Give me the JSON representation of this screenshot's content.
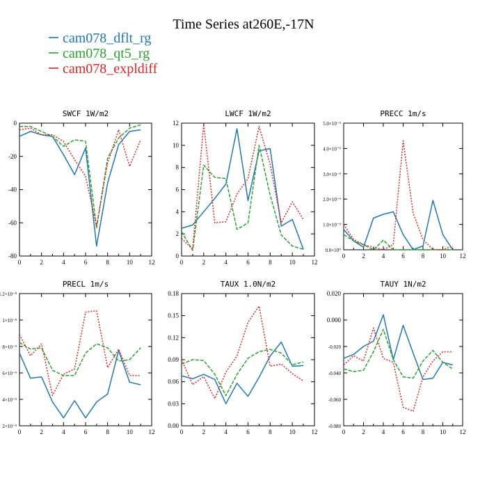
{
  "title": "Time Series at260E,-17N",
  "legend": [
    {
      "name": "cam078_dflt_rg",
      "color": "#1f77b4"
    },
    {
      "name": "cam078_qt5_rg",
      "color": "#2ca02c"
    },
    {
      "name": "cam078_expldiff",
      "color": "#d62728"
    }
  ],
  "colors": {
    "dflt": "#1f77b4",
    "qt5": "#2ca02c",
    "expl": "#d62728",
    "axis": "#000000"
  },
  "chart_data": [
    {
      "type": "line",
      "title": "SWCF   1W/m2",
      "x": [
        0,
        1,
        2,
        3,
        4,
        5,
        6,
        7,
        8,
        9,
        10,
        11
      ],
      "xlim": [
        0,
        12
      ],
      "xticks": [
        "0",
        "2",
        "4",
        "6",
        "8",
        "10",
        "12"
      ],
      "ylim": [
        -80,
        0
      ],
      "yticks": [
        {
          "v": 0,
          "label": "0"
        },
        {
          "v": -20,
          "label": "-20"
        },
        {
          "v": -40,
          "label": "-40"
        },
        {
          "v": -60,
          "label": "-60"
        },
        {
          "v": -80,
          "label": "-80"
        }
      ],
      "series": [
        {
          "name": "cam078_dflt_rg",
          "values": [
            -8,
            -5,
            -7,
            -8,
            -19,
            -31,
            -15,
            -74,
            -36,
            -13,
            -5,
            -4
          ]
        },
        {
          "name": "cam078_qt5_rg",
          "values": [
            -2,
            -2,
            -5,
            -8,
            -14,
            -10,
            -11,
            -63,
            -21,
            -9,
            -3,
            -1
          ]
        },
        {
          "name": "cam078_expldiff",
          "values": [
            -4,
            -3,
            -7,
            -7,
            -11,
            -22,
            -32,
            -62,
            -24,
            -4,
            -26,
            -10
          ]
        }
      ]
    },
    {
      "type": "line",
      "title": "LWCF   1W/m2",
      "x": [
        0,
        1,
        2,
        3,
        4,
        5,
        6,
        7,
        8,
        9,
        10,
        11
      ],
      "xlim": [
        0,
        12
      ],
      "xticks": [
        "0",
        "2",
        "4",
        "6",
        "8",
        "10",
        "12"
      ],
      "ylim": [
        0,
        12
      ],
      "yticks": [
        {
          "v": 0,
          "label": "0"
        },
        {
          "v": 2,
          "label": "2"
        },
        {
          "v": 4,
          "label": "4"
        },
        {
          "v": 6,
          "label": "6"
        },
        {
          "v": 8,
          "label": "8"
        },
        {
          "v": 10,
          "label": "10"
        },
        {
          "v": 12,
          "label": "12"
        }
      ],
      "series": [
        {
          "name": "cam078_dflt_rg",
          "values": [
            2.5,
            2.8,
            4.0,
            5.2,
            6.5,
            11.5,
            5.0,
            9.5,
            9.7,
            2.7,
            3.3,
            0.6
          ]
        },
        {
          "name": "cam078_qt5_rg",
          "values": [
            2.2,
            0.5,
            8.2,
            7.1,
            7.0,
            2.4,
            3.0,
            10.0,
            5.5,
            1.9,
            0.9,
            0.6
          ]
        },
        {
          "name": "cam078_expldiff",
          "values": [
            1.6,
            0.6,
            11.9,
            3.0,
            3.1,
            5.6,
            7.0,
            11.7,
            8.3,
            3.0,
            4.9,
            3.3
          ]
        }
      ]
    },
    {
      "type": "line",
      "title": "PRECC   1m/s",
      "x": [
        0,
        1,
        2,
        3,
        4,
        5,
        6,
        7,
        8,
        9,
        10,
        11
      ],
      "xlim": [
        0,
        12
      ],
      "xticks": [
        "0",
        "2",
        "4",
        "6",
        "8",
        "10",
        "12"
      ],
      "ylim": [
        0,
        5e-09
      ],
      "yticks": [
        {
          "v": 0,
          "label": "0.0×10⁰"
        },
        {
          "v": 1e-09,
          "label": "1.0×10⁻⁹"
        },
        {
          "v": 2e-09,
          "label": "2.0×10⁻⁹"
        },
        {
          "v": 3e-09,
          "label": "3.0×10⁻⁹"
        },
        {
          "v": 4e-09,
          "label": "4.0×10⁻⁹"
        },
        {
          "v": 5e-09,
          "label": "5.0×10⁻⁹"
        }
      ],
      "series": [
        {
          "name": "cam078_dflt_rg",
          "values": [
            8e-10,
            3.5e-10,
            1e-10,
            1.25e-09,
            1.4e-09,
            1.5e-09,
            6e-10,
            0,
            1.5e-10,
            1.95e-09,
            6e-10,
            0
          ]
        },
        {
          "name": "cam078_qt5_rg",
          "values": [
            6e-10,
            3.5e-10,
            2e-10,
            0,
            3.8e-10,
            0,
            0,
            0,
            0,
            0,
            0,
            0
          ]
        },
        {
          "name": "cam078_expldiff",
          "values": [
            1e-09,
            4e-10,
            2e-10,
            1e-10,
            0,
            2e-10,
            4.3e-09,
            1.45e-09,
            4e-10,
            1e-11,
            0,
            1.5e-10
          ]
        }
      ]
    },
    {
      "type": "line",
      "title": "PRECL   1m/s",
      "x": [
        0,
        1,
        2,
        3,
        4,
        5,
        6,
        7,
        8,
        9,
        10,
        11
      ],
      "xlim": [
        0,
        12
      ],
      "xticks": [
        "0",
        "2",
        "4",
        "6",
        "8",
        "10",
        "12"
      ],
      "ylim": [
        2e-09,
        1.2e-08
      ],
      "yticks": [
        {
          "v": 2e-09,
          "label": "2×10⁻⁹"
        },
        {
          "v": 4e-09,
          "label": "4×10⁻⁹"
        },
        {
          "v": 6e-09,
          "label": "6×10⁻⁹"
        },
        {
          "v": 8e-09,
          "label": "8×10⁻⁹"
        },
        {
          "v": 1e-08,
          "label": "1×10⁻⁸"
        },
        {
          "v": 1.2e-08,
          "label": "1.2×10⁻⁸"
        }
      ],
      "series": [
        {
          "name": "cam078_dflt_rg",
          "values": [
            7.5e-09,
            5.6e-09,
            5.7e-09,
            3.8e-09,
            2.6e-09,
            3.9e-09,
            2.6e-09,
            3.8e-09,
            4.4e-09,
            7.7e-09,
            5.3e-09,
            5.1e-09
          ]
        },
        {
          "name": "cam078_qt5_rg",
          "values": [
            8.3e-09,
            7.8e-09,
            7.9e-09,
            6.2e-09,
            5.8e-09,
            5.8e-09,
            7.5e-09,
            8.2e-09,
            7.9e-09,
            6.9e-09,
            7e-09,
            7.9e-09
          ]
        },
        {
          "name": "cam078_expldiff",
          "values": [
            8.9e-09,
            7.3e-09,
            8.2e-09,
            4.3e-09,
            5.9e-09,
            6.3e-09,
            1.06e-08,
            1.07e-08,
            6.4e-09,
            7.8e-09,
            5.8e-09,
            5.8e-09
          ]
        }
      ]
    },
    {
      "type": "line",
      "title": "TAUX   1.0N/m2",
      "x": [
        0,
        1,
        2,
        3,
        4,
        5,
        6,
        7,
        8,
        9,
        10,
        11
      ],
      "xlim": [
        0,
        12
      ],
      "xticks": [
        "0",
        "2",
        "4",
        "6",
        "8",
        "10",
        "12"
      ],
      "ylim": [
        0,
        0.18
      ],
      "yticks": [
        {
          "v": 0,
          "label": "0.00"
        },
        {
          "v": 0.03,
          "label": "0.03"
        },
        {
          "v": 0.06,
          "label": "0.06"
        },
        {
          "v": 0.09,
          "label": "0.09"
        },
        {
          "v": 0.12,
          "label": "0.12"
        },
        {
          "v": 0.15,
          "label": "0.15"
        },
        {
          "v": 0.18,
          "label": "0.18"
        }
      ],
      "series": [
        {
          "name": "cam078_dflt_rg",
          "values": [
            0.068,
            0.064,
            0.07,
            0.063,
            0.03,
            0.058,
            0.04,
            0.066,
            0.095,
            0.114,
            0.081,
            0.082
          ]
        },
        {
          "name": "cam078_qt5_rg",
          "values": [
            0.084,
            0.09,
            0.089,
            0.07,
            0.041,
            0.07,
            0.092,
            0.101,
            0.104,
            0.099,
            0.083,
            0.087
          ]
        },
        {
          "name": "cam078_expldiff",
          "values": [
            0.09,
            0.056,
            0.067,
            0.037,
            0.073,
            0.095,
            0.141,
            0.163,
            0.081,
            0.084,
            0.071,
            0.061
          ]
        }
      ]
    },
    {
      "type": "line",
      "title": "TAUY   1N/m2",
      "x": [
        0,
        1,
        2,
        3,
        4,
        5,
        6,
        7,
        8,
        9,
        10,
        11
      ],
      "xlim": [
        0,
        12
      ],
      "xticks": [
        "0",
        "2",
        "4",
        "6",
        "8",
        "10",
        "12"
      ],
      "ylim": [
        -0.08,
        0.02
      ],
      "yticks": [
        {
          "v": -0.08,
          "label": "-0.080"
        },
        {
          "v": -0.06,
          "label": "-0.060"
        },
        {
          "v": -0.04,
          "label": "-0.040"
        },
        {
          "v": -0.02,
          "label": "-0.020"
        },
        {
          "v": 0,
          "label": "0.000"
        },
        {
          "v": 0.02,
          "label": "0.020"
        }
      ],
      "series": [
        {
          "name": "cam078_dflt_rg",
          "values": [
            -0.029,
            -0.026,
            -0.02,
            -0.016,
            0.004,
            -0.03,
            -0.004,
            -0.025,
            -0.045,
            -0.044,
            -0.032,
            -0.034
          ]
        },
        {
          "name": "cam078_qt5_rg",
          "values": [
            -0.037,
            -0.039,
            -0.038,
            -0.024,
            -0.007,
            -0.03,
            -0.043,
            -0.044,
            -0.031,
            -0.023,
            -0.032,
            -0.037
          ]
        },
        {
          "name": "cam078_expldiff",
          "values": [
            -0.034,
            -0.027,
            -0.031,
            -0.006,
            -0.029,
            -0.032,
            -0.066,
            -0.069,
            -0.043,
            -0.031,
            -0.024,
            -0.024
          ]
        }
      ]
    }
  ]
}
